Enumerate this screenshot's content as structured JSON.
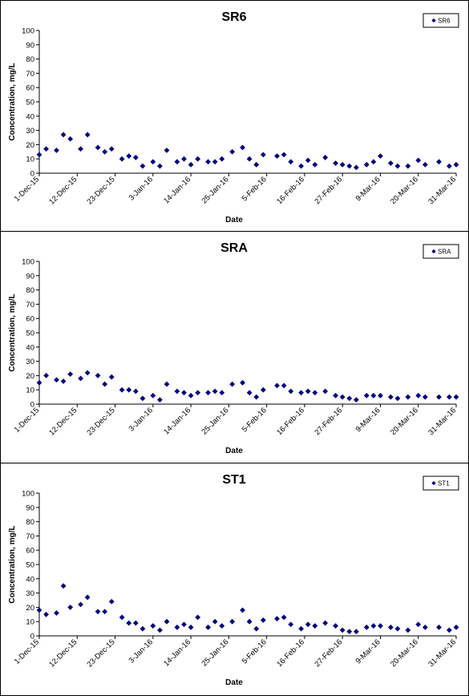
{
  "chart_data": [
    {
      "type": "scatter",
      "title": "SR6",
      "xlabel": "Date",
      "ylabel": "Concentration, mg/L",
      "ylim": [
        0,
        100
      ],
      "yticks": [
        "0",
        "10",
        "20",
        "30",
        "40",
        "50",
        "60",
        "70",
        "80",
        "90",
        "100"
      ],
      "xticks": [
        "1-Dec-15",
        "12-Dec-15",
        "23-Dec-15",
        "3-Jan-16",
        "14-Jan-16",
        "25-Jan-16",
        "5-Feb-16",
        "16-Feb-16",
        "27-Feb-16",
        "9-Mar-16",
        "20-Mar-16",
        "31-Mar-16"
      ],
      "xlim_days": [
        0,
        121
      ],
      "legend": {
        "position": "top-right",
        "entries": [
          "SR6"
        ]
      },
      "series": [
        {
          "name": "SR6",
          "color": "#000080",
          "x": [
            0,
            2,
            5,
            7,
            9,
            12,
            14,
            17,
            19,
            21,
            24,
            26,
            28,
            30,
            33,
            35,
            37,
            40,
            42,
            44,
            46,
            49,
            51,
            53,
            56,
            59,
            61,
            63,
            65,
            69,
            71,
            73,
            76,
            78,
            80,
            83,
            86,
            88,
            90,
            92,
            95,
            97,
            99,
            102,
            104,
            107,
            110,
            112,
            116,
            119,
            121
          ],
          "y": [
            13,
            17,
            16,
            27,
            24,
            17,
            27,
            18,
            15,
            17,
            10,
            12,
            11,
            5,
            8,
            5,
            16,
            8,
            10,
            6,
            10,
            8,
            8,
            10,
            15,
            18,
            10,
            6,
            13,
            12,
            13,
            8,
            5,
            9,
            6,
            11,
            7,
            6,
            5,
            4,
            6,
            8,
            12,
            7,
            5,
            5,
            9,
            6,
            8,
            5,
            6
          ]
        }
      ]
    },
    {
      "type": "scatter",
      "title": "SRA",
      "xlabel": "Date",
      "ylabel": "Concentration, mg/L",
      "ylim": [
        0,
        100
      ],
      "yticks": [
        "0",
        "10",
        "20",
        "30",
        "40",
        "50",
        "60",
        "70",
        "80",
        "90",
        "100"
      ],
      "xticks": [
        "1-Dec-15",
        "12-Dec-15",
        "23-Dec-15",
        "3-Jan-16",
        "14-Jan-16",
        "25-Jan-16",
        "5-Feb-16",
        "16-Feb-16",
        "27-Feb-16",
        "9-Mar-16",
        "20-Mar-16",
        "31-Mar-16"
      ],
      "xlim_days": [
        0,
        121
      ],
      "legend": {
        "position": "top-right",
        "entries": [
          "SRA"
        ]
      },
      "series": [
        {
          "name": "SRA",
          "color": "#000080",
          "x": [
            0,
            2,
            5,
            7,
            9,
            12,
            14,
            17,
            19,
            21,
            24,
            26,
            28,
            30,
            33,
            35,
            37,
            40,
            42,
            44,
            46,
            49,
            51,
            53,
            56,
            59,
            61,
            63,
            65,
            69,
            71,
            73,
            76,
            78,
            80,
            83,
            86,
            88,
            90,
            92,
            95,
            97,
            99,
            102,
            104,
            107,
            110,
            112,
            116,
            119,
            121
          ],
          "y": [
            15,
            20,
            17,
            16,
            21,
            18,
            22,
            20,
            14,
            19,
            10,
            10,
            9,
            4,
            6,
            3,
            14,
            9,
            8,
            6,
            8,
            8,
            9,
            8,
            14,
            15,
            8,
            5,
            10,
            13,
            13,
            9,
            8,
            9,
            8,
            9,
            6,
            5,
            4,
            3,
            6,
            6,
            6,
            5,
            4,
            5,
            6,
            5,
            5,
            5,
            5
          ]
        }
      ]
    },
    {
      "type": "scatter",
      "title": "ST1",
      "xlabel": "Date",
      "ylabel": "Concentration, mg/L",
      "ylim": [
        0,
        100
      ],
      "yticks": [
        "0",
        "10",
        "20",
        "30",
        "40",
        "50",
        "60",
        "70",
        "80",
        "90",
        "100"
      ],
      "xticks": [
        "1-Dec-15",
        "12-Dec-15",
        "23-Dec-15",
        "3-Jan-16",
        "14-Jan-16",
        "25-Jan-16",
        "5-Feb-16",
        "16-Feb-16",
        "27-Feb-16",
        "9-Mar-16",
        "20-Mar-16",
        "31-Mar-16"
      ],
      "xlim_days": [
        0,
        121
      ],
      "legend": {
        "position": "top-right",
        "entries": [
          "ST1"
        ]
      },
      "series": [
        {
          "name": "ST1",
          "color": "#000080",
          "x": [
            0,
            2,
            5,
            7,
            9,
            12,
            14,
            17,
            19,
            21,
            24,
            26,
            28,
            30,
            33,
            35,
            37,
            40,
            42,
            44,
            46,
            49,
            51,
            53,
            56,
            59,
            61,
            63,
            65,
            69,
            71,
            73,
            76,
            78,
            80,
            83,
            86,
            88,
            90,
            92,
            95,
            97,
            99,
            102,
            104,
            107,
            110,
            112,
            116,
            119,
            121
          ],
          "y": [
            18,
            15,
            16,
            35,
            20,
            22,
            27,
            17,
            17,
            24,
            13,
            9,
            9,
            5,
            7,
            4,
            10,
            6,
            8,
            6,
            13,
            6,
            10,
            7,
            10,
            18,
            10,
            5,
            11,
            12,
            13,
            8,
            5,
            8,
            7,
            9,
            7,
            4,
            3,
            3,
            6,
            7,
            7,
            6,
            5,
            4,
            8,
            6,
            6,
            4,
            6
          ]
        }
      ]
    }
  ]
}
